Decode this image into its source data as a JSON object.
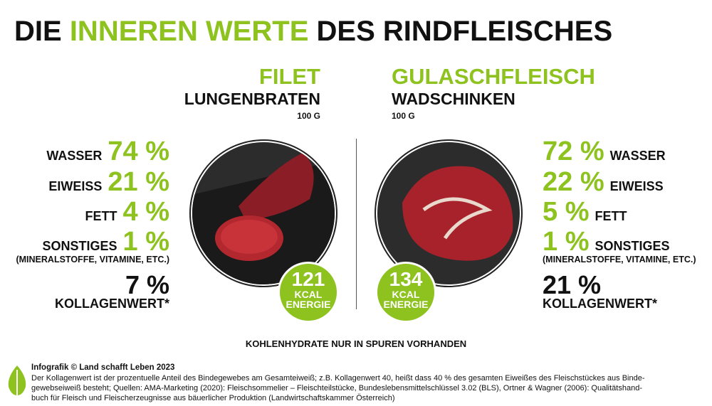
{
  "title": {
    "part1": "DIE",
    "part2": "INNEREN WERTE",
    "part3": "DES RINDFLEISCHES"
  },
  "left": {
    "name": "FILET",
    "subname": "LUNGENBRATEN",
    "amount": "100 G",
    "rows": [
      {
        "label": "WASSER",
        "value": "74 %"
      },
      {
        "label": "EIWEISS",
        "value": "21 %"
      },
      {
        "label": "FETT",
        "value": "4 %"
      },
      {
        "label": "SONSTIGES",
        "value": "1 %"
      }
    ],
    "note": "(MINERALSTOFFE, VITAMINE, ETC.)",
    "collagen": {
      "value": "7 %",
      "label": "KOLLAGENWERT*"
    },
    "energy": {
      "value": "121",
      "unit": "KCAL",
      "label": "ENERGIE"
    }
  },
  "right": {
    "name": "GULASCHFLEISCH",
    "subname": "WADSCHINKEN",
    "amount": "100 G",
    "rows": [
      {
        "label": "WASSER",
        "value": "72 %"
      },
      {
        "label": "EIWEISS",
        "value": "22 %"
      },
      {
        "label": "FETT",
        "value": "5 %"
      },
      {
        "label": "SONSTIGES",
        "value": "1 %"
      }
    ],
    "note": "(MINERALSTOFFE, VITAMINE, ETC.)",
    "collagen": {
      "value": "21 %",
      "label": "KOLLAGENWERT*"
    },
    "energy": {
      "value": "134",
      "unit": "KCAL",
      "label": "ENERGIE"
    }
  },
  "carbs": "KOHLENHYDRATE NUR IN SPUREN VORHANDEN",
  "footer": {
    "credit": "Infografik © Land schafft Leben 2023",
    "lines": [
      "Der Kollagenwert ist der prozentuelle Anteil des Bindegewebes am Gesamteiweiß; z.B. Kollagenwert 40, heißt dass 40 % des gesamten Eiweißes des Fleischstückes aus Binde-",
      "gewebseiweiß besteht; Quellen: AMA-Marketing (2020): Fleischsommelier – Fleischteilstücke, Bundeslebensmittelschlüssel 3.02 (BLS), Ortner & Wagner (2006): Qualitätshand-",
      "buch für Fleisch und Fleischerzeugnisse aus bäuerlicher Produktion (Landwirtschaftskammer Österreich)"
    ]
  }
}
